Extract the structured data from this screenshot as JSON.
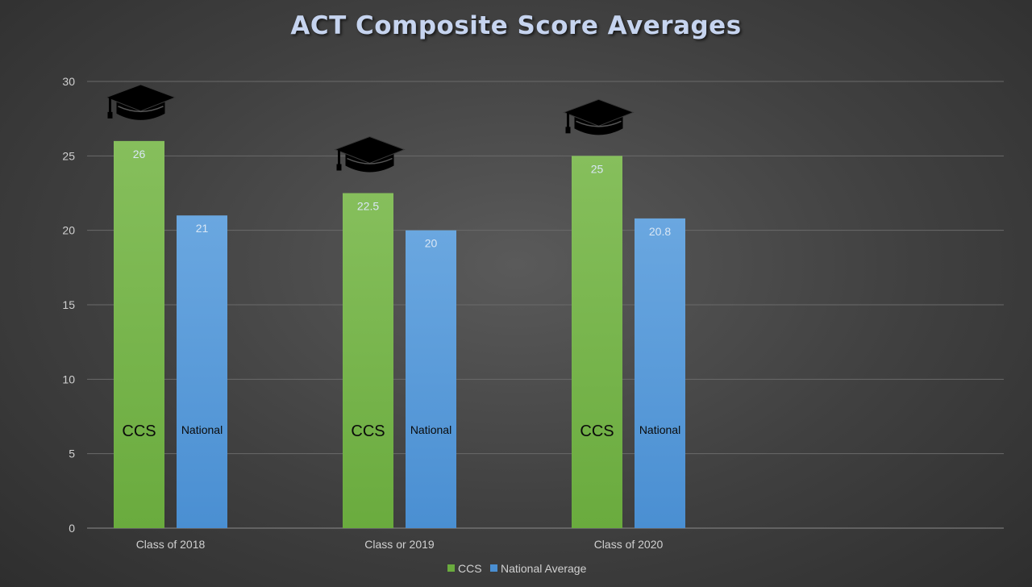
{
  "chart_data": {
    "type": "bar",
    "title": "ACT Composite Score Averages",
    "xlabel": "",
    "ylabel": "",
    "categories": [
      "Class of 2018",
      "Class or 2019",
      "Class of 2020"
    ],
    "series": [
      {
        "name": "CCS",
        "values": [
          26,
          22.5,
          25
        ],
        "color": "#6aab3e",
        "color_top": "#86bf5c",
        "bar_label": "CCS"
      },
      {
        "name": "National Average",
        "values": [
          21,
          20,
          20.8
        ],
        "color": "#4a8fd2",
        "color_top": "#6aa7e0",
        "bar_label": "National"
      }
    ],
    "ylim": [
      0,
      30
    ],
    "yticks": [
      0,
      5,
      10,
      15,
      20,
      25,
      30
    ],
    "grid": true,
    "legend": "bottom-center",
    "data_label_color": "#d9e7f5",
    "icon": "graduation-cap-icon"
  }
}
